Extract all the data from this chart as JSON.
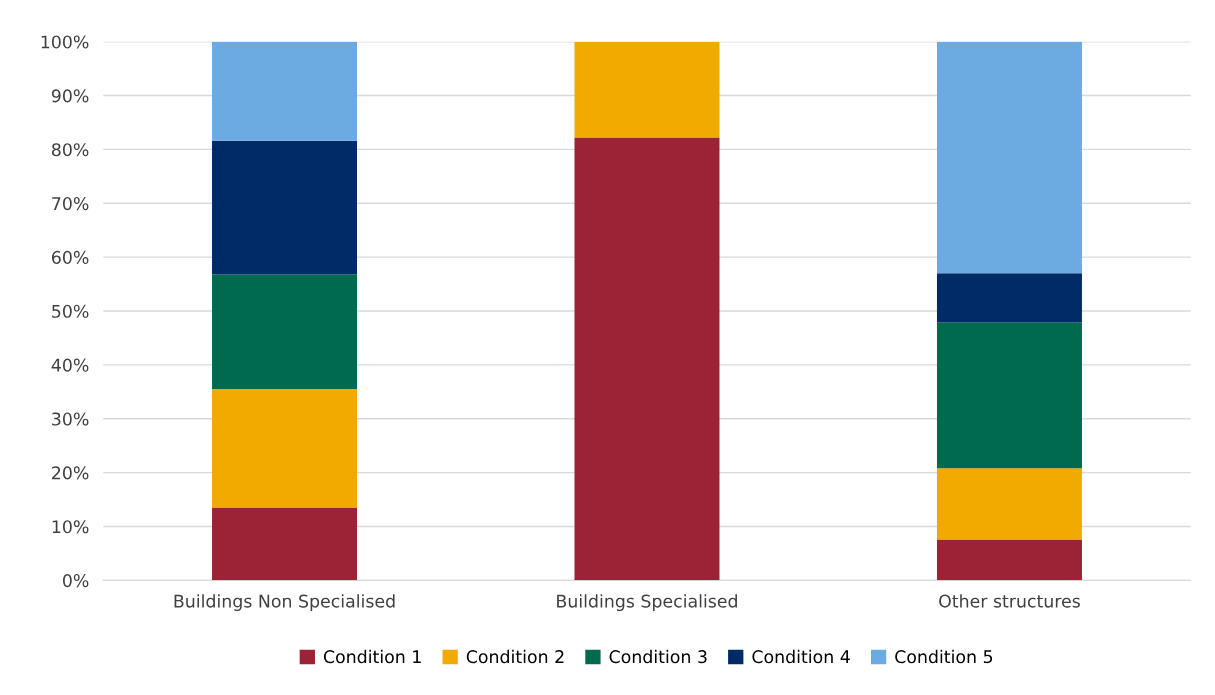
{
  "chart_data": {
    "type": "bar",
    "stacked": true,
    "categories": [
      "Buildings Non Specialised",
      "Buildings Specialised",
      "Other structures"
    ],
    "series": [
      {
        "name": "Condition 1",
        "color": "#9b2335",
        "values": [
          13.5,
          82.2,
          7.6
        ]
      },
      {
        "name": "Condition 2",
        "color": "#f0aa00",
        "values": [
          22,
          17.8,
          13.2
        ]
      },
      {
        "name": "Condition 3",
        "color": "#006a4e",
        "values": [
          21.3,
          0,
          27.1
        ]
      },
      {
        "name": "Condition 4",
        "color": "#002b66",
        "values": [
          24.8,
          0,
          9.1
        ]
      },
      {
        "name": "Condition 5",
        "color": "#6cabe2",
        "values": [
          18.4,
          0,
          43
        ]
      }
    ],
    "ylim": [
      0,
      100
    ],
    "yticks": [
      {
        "value": 0,
        "label": "0%"
      },
      {
        "value": 10,
        "label": "10%"
      },
      {
        "value": 20,
        "label": "20%"
      },
      {
        "value": 30,
        "label": "30%"
      },
      {
        "value": 40,
        "label": "40%"
      },
      {
        "value": 50,
        "label": "50%"
      },
      {
        "value": 60,
        "label": "60%"
      },
      {
        "value": 70,
        "label": "70%"
      },
      {
        "value": 80,
        "label": "80%"
      },
      {
        "value": 90,
        "label": "90%"
      },
      {
        "value": 100,
        "label": "100%"
      }
    ],
    "grid": "y",
    "legend": "bottom"
  }
}
